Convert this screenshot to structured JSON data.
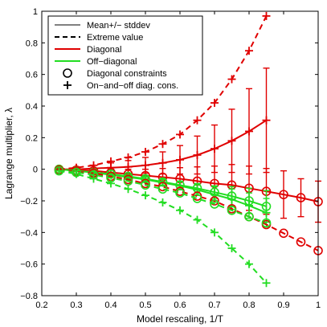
{
  "chart_data": {
    "type": "line",
    "title": "",
    "xlabel": "Model rescaling, 1/T",
    "ylabel": "Lagrange multiplier, λ",
    "xlim": [
      0.2,
      1.0
    ],
    "ylim": [
      -0.8,
      1.0
    ],
    "x_ticks": [
      0.2,
      0.3,
      0.4,
      0.5,
      0.6,
      0.7,
      0.8,
      0.9,
      1.0
    ],
    "x_tick_labels": [
      "0.2",
      "0.3",
      "0.4",
      "0.5",
      "0.6",
      "0.7",
      "0.8",
      "0.9",
      "1"
    ],
    "y_ticks": [
      -0.8,
      -0.6,
      -0.4,
      -0.2,
      0,
      0.2,
      0.4,
      0.6,
      0.8,
      1.0
    ],
    "y_tick_labels": [
      "−0.8",
      "−0.6",
      "−0.4",
      "−0.2",
      "0",
      "0.2",
      "0.4",
      "0.6",
      "0.8",
      "1"
    ],
    "grid": false,
    "legend": {
      "placement": "top-left",
      "entries": [
        {
          "label": "Mean+/− stddev",
          "line": "solid",
          "color": "#000000",
          "thin": true
        },
        {
          "label": "Extreme value",
          "line": "dashed",
          "color": "#000000"
        },
        {
          "label": "Diagonal",
          "line": "solid",
          "color": "#e00000"
        },
        {
          "label": "Off−diagonal",
          "line": "solid",
          "color": "#22dd22"
        },
        {
          "label": "Diagonal constraints",
          "marker": "circle",
          "color": "#000000"
        },
        {
          "label": "On−and−off diag. cons.",
          "marker": "plus",
          "color": "#000000"
        }
      ]
    },
    "colors": {
      "diagonal": "#e00000",
      "offdiag": "#22dd22"
    },
    "series": [
      {
        "style": "solid",
        "color": "#e00000",
        "marker": "circle",
        "x": [
          0.25,
          0.3,
          0.35,
          0.4,
          0.45,
          0.5,
          0.55,
          0.6,
          0.65,
          0.7,
          0.75,
          0.8,
          0.85,
          0.9,
          0.95,
          1.0
        ],
        "y": [
          0.0,
          -0.005,
          -0.01,
          -0.02,
          -0.03,
          -0.04,
          -0.05,
          -0.06,
          -0.075,
          -0.09,
          -0.1,
          -0.12,
          -0.14,
          -0.16,
          -0.18,
          -0.205
        ],
        "err": [
          0.008,
          0.01,
          0.015,
          0.02,
          0.03,
          0.04,
          0.055,
          0.07,
          0.09,
          0.11,
          0.13,
          0.14,
          0.145,
          0.15,
          0.12,
          0.13
        ]
      },
      {
        "style": "solid",
        "color": "#e00000",
        "marker": "plus",
        "x": [
          0.25,
          0.3,
          0.35,
          0.4,
          0.45,
          0.5,
          0.55,
          0.6,
          0.65,
          0.7,
          0.75,
          0.8,
          0.85
        ],
        "y": [
          0.0,
          0.0,
          0.005,
          0.01,
          0.015,
          0.025,
          0.04,
          0.06,
          0.09,
          0.13,
          0.18,
          0.24,
          0.31
        ],
        "err": [
          0.01,
          0.015,
          0.02,
          0.03,
          0.04,
          0.05,
          0.07,
          0.09,
          0.12,
          0.15,
          0.2,
          0.27,
          0.33
        ]
      },
      {
        "style": "solid",
        "color": "#22dd22",
        "marker": "circle",
        "x": [
          0.25,
          0.3,
          0.35,
          0.4,
          0.45,
          0.5,
          0.55,
          0.6,
          0.65,
          0.7,
          0.75,
          0.8,
          0.85
        ],
        "y": [
          0.0,
          -0.01,
          -0.02,
          -0.03,
          -0.045,
          -0.06,
          -0.08,
          -0.1,
          -0.12,
          -0.145,
          -0.17,
          -0.2,
          -0.235
        ],
        "err": [
          0.0,
          0.005,
          0.005,
          0.01,
          0.01,
          0.015,
          0.02,
          0.025,
          0.03,
          0.04,
          0.06,
          0.08,
          0.1
        ]
      },
      {
        "style": "solid",
        "color": "#22dd22",
        "marker": "plus",
        "x": [
          0.25,
          0.3,
          0.35,
          0.4,
          0.45,
          0.5,
          0.55,
          0.6,
          0.65,
          0.7,
          0.75,
          0.8,
          0.85
        ],
        "y": [
          0.0,
          -0.01,
          -0.02,
          -0.035,
          -0.05,
          -0.065,
          -0.085,
          -0.105,
          -0.13,
          -0.16,
          -0.19,
          -0.23,
          -0.275
        ],
        "err": [
          0.0,
          0.005,
          0.005,
          0.01,
          0.01,
          0.015,
          0.02,
          0.025,
          0.035,
          0.05,
          0.065,
          0.08,
          0.09
        ]
      },
      {
        "style": "dashed",
        "color": "#e00000",
        "marker": "circle",
        "x": [
          0.25,
          0.3,
          0.35,
          0.4,
          0.45,
          0.5,
          0.55,
          0.6,
          0.65,
          0.7,
          0.75,
          0.8,
          0.85,
          0.9,
          0.95,
          1.0
        ],
        "y": [
          -0.005,
          -0.015,
          -0.025,
          -0.045,
          -0.065,
          -0.09,
          -0.11,
          -0.14,
          -0.17,
          -0.2,
          -0.25,
          -0.3,
          -0.35,
          -0.405,
          -0.46,
          -0.515
        ]
      },
      {
        "style": "dashed",
        "color": "#e00000",
        "marker": "plus",
        "x": [
          0.25,
          0.3,
          0.35,
          0.4,
          0.45,
          0.5,
          0.55,
          0.6,
          0.65,
          0.7,
          0.75,
          0.8,
          0.85
        ],
        "y": [
          0.0,
          0.01,
          0.025,
          0.05,
          0.075,
          0.11,
          0.16,
          0.22,
          0.31,
          0.42,
          0.57,
          0.75,
          0.97
        ]
      },
      {
        "style": "dashed",
        "color": "#22dd22",
        "marker": "circle",
        "x": [
          0.25,
          0.3,
          0.35,
          0.4,
          0.45,
          0.5,
          0.55,
          0.6,
          0.65,
          0.7,
          0.75,
          0.8,
          0.85
        ],
        "y": [
          -0.01,
          -0.02,
          -0.035,
          -0.055,
          -0.075,
          -0.1,
          -0.125,
          -0.15,
          -0.185,
          -0.22,
          -0.26,
          -0.3,
          -0.34
        ]
      },
      {
        "style": "dashed",
        "color": "#22dd22",
        "marker": "plus",
        "x": [
          0.25,
          0.3,
          0.35,
          0.4,
          0.45,
          0.5,
          0.55,
          0.6,
          0.65,
          0.7,
          0.75,
          0.8,
          0.85
        ],
        "y": [
          -0.01,
          -0.03,
          -0.06,
          -0.09,
          -0.125,
          -0.165,
          -0.21,
          -0.26,
          -0.32,
          -0.4,
          -0.5,
          -0.6,
          -0.72
        ]
      }
    ]
  }
}
